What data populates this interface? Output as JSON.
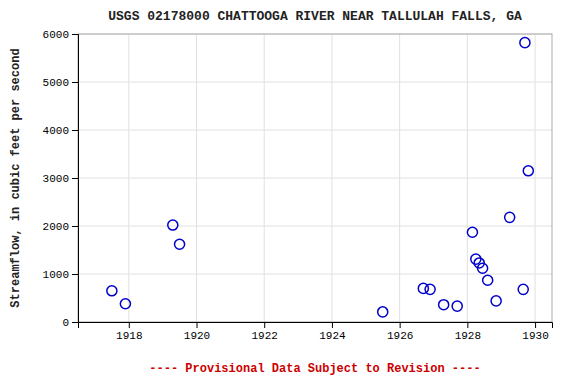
{
  "chart_data": {
    "type": "scatter",
    "title": "USGS 02178000 CHATTOOGA RIVER NEAR TALLULAH FALLS, GA",
    "subtitle": "---- Provisional Data Subject to Revision ----",
    "y_label": "Streamflow, in cubic feet per second",
    "x": [
      1917.5,
      1917.9,
      1919.3,
      1919.5,
      1925.5,
      1926.7,
      1926.9,
      1927.3,
      1927.7,
      1928.15,
      1928.25,
      1928.35,
      1928.45,
      1928.6,
      1928.85,
      1929.25,
      1929.65,
      1929.8,
      1929.7
    ],
    "values": [
      650,
      380,
      2020,
      1620,
      210,
      700,
      680,
      360,
      330,
      1870,
      1310,
      1230,
      1120,
      870,
      440,
      2180,
      680,
      3150,
      5820
    ],
    "color": "#0000cc",
    "marker": "circle",
    "xlim": [
      1916.5,
      1930.5
    ],
    "ylim": [
      0,
      6000
    ],
    "xticks": [
      1918,
      1920,
      1922,
      1924,
      1926,
      1928,
      1930
    ],
    "yticks": [
      0,
      1000,
      2000,
      3000,
      4000,
      5000,
      6000
    ],
    "grid": true
  }
}
